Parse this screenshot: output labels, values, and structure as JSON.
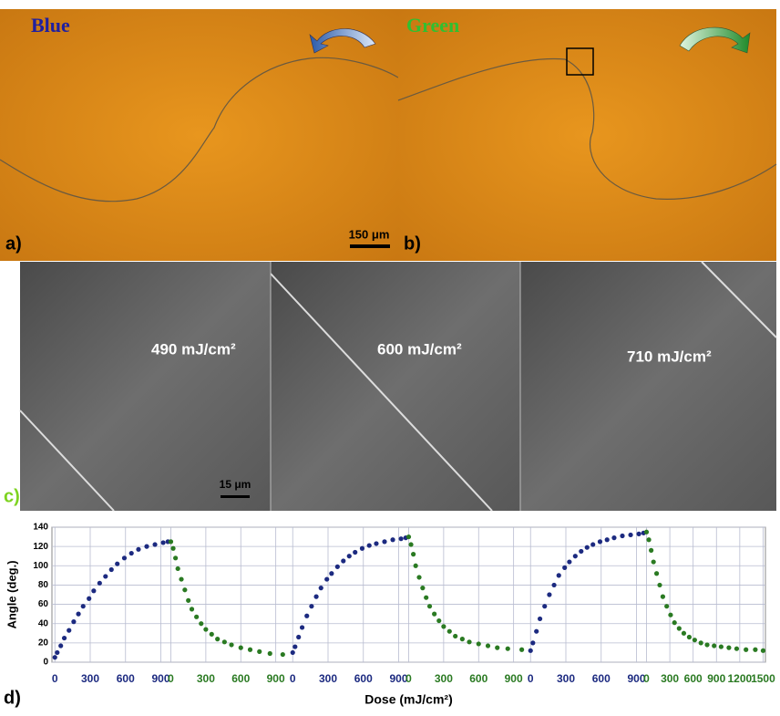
{
  "panels": {
    "a": {
      "label": "a)",
      "caption": "Blue",
      "scale_bar": "150 μm"
    },
    "b": {
      "label": "b)",
      "caption": "Green"
    },
    "c": {
      "label": "c)",
      "doses": [
        "490 mJ/cm²",
        "600 mJ/cm²",
        "710 mJ/cm²"
      ],
      "scale_bar": "15 μm"
    },
    "d": {
      "label": "d)"
    }
  },
  "chart_data": [
    {
      "type": "scatter",
      "ylabel": "Angle (deg.)",
      "xlabel": "Dose (mJ/cm²)",
      "xlim": [
        -25,
        985
      ],
      "xticks": [
        0,
        300,
        600,
        900
      ],
      "ylim": [
        0,
        140
      ],
      "yticks": [
        0,
        20,
        40,
        60,
        80,
        100,
        120,
        140
      ],
      "grid": true,
      "series": [
        {
          "color": "#1c2a80",
          "x": [
            0,
            20,
            50,
            80,
            120,
            160,
            200,
            240,
            290,
            330,
            380,
            430,
            480,
            530,
            590,
            650,
            710,
            780,
            850,
            920,
            960
          ],
          "values": [
            5,
            10,
            17,
            25,
            33,
            42,
            50,
            58,
            66,
            74,
            82,
            89,
            96,
            102,
            108,
            113,
            117,
            120,
            122,
            124,
            125
          ]
        }
      ]
    },
    {
      "type": "scatter",
      "xlim": [
        0,
        1020
      ],
      "xticks": [
        0,
        300,
        600,
        900
      ],
      "ylim": [
        0,
        140
      ],
      "grid": true,
      "series": [
        {
          "color": "#2a7a22",
          "x": [
            0,
            20,
            40,
            60,
            90,
            120,
            150,
            180,
            220,
            260,
            300,
            350,
            400,
            460,
            520,
            600,
            680,
            760,
            850,
            960
          ],
          "values": [
            125,
            118,
            108,
            97,
            86,
            75,
            64,
            55,
            47,
            40,
            34,
            29,
            24,
            21,
            18,
            15,
            13,
            11,
            9,
            8
          ]
        }
      ]
    },
    {
      "type": "scatter",
      "xlim": [
        -25,
        985
      ],
      "xticks": [
        0,
        300,
        600,
        900
      ],
      "ylim": [
        0,
        140
      ],
      "grid": true,
      "series": [
        {
          "color": "#1c2a80",
          "x": [
            0,
            20,
            50,
            80,
            120,
            160,
            200,
            240,
            290,
            330,
            380,
            430,
            480,
            530,
            590,
            650,
            710,
            780,
            850,
            920,
            960
          ],
          "values": [
            10,
            16,
            26,
            36,
            48,
            58,
            68,
            77,
            86,
            92,
            99,
            105,
            110,
            114,
            118,
            121,
            123,
            125,
            127,
            128,
            129
          ]
        }
      ]
    },
    {
      "type": "scatter",
      "xlim": [
        0,
        1020
      ],
      "xticks": [
        0,
        300,
        600,
        900
      ],
      "ylim": [
        0,
        140
      ],
      "grid": true,
      "series": [
        {
          "color": "#2a7a22",
          "x": [
            0,
            20,
            40,
            60,
            90,
            120,
            150,
            180,
            220,
            260,
            300,
            350,
            400,
            460,
            520,
            600,
            680,
            760,
            850,
            970
          ],
          "values": [
            130,
            122,
            112,
            100,
            88,
            77,
            67,
            58,
            50,
            43,
            37,
            32,
            27,
            24,
            21,
            19,
            17,
            15,
            14,
            13
          ]
        }
      ]
    },
    {
      "type": "scatter",
      "xlim": [
        -25,
        985
      ],
      "xticks": [
        0,
        300,
        600,
        900
      ],
      "ylim": [
        0,
        140
      ],
      "grid": true,
      "series": [
        {
          "color": "#1c2a80",
          "x": [
            0,
            20,
            50,
            80,
            120,
            160,
            200,
            240,
            290,
            330,
            380,
            430,
            480,
            530,
            590,
            650,
            710,
            780,
            850,
            920,
            960
          ],
          "values": [
            12,
            20,
            32,
            45,
            58,
            70,
            80,
            90,
            98,
            104,
            110,
            115,
            119,
            122,
            125,
            127,
            129,
            131,
            132,
            133,
            134
          ]
        }
      ]
    },
    {
      "type": "scatter",
      "xlim": [
        0,
        1530
      ],
      "xticks": [
        0,
        300,
        600,
        900,
        1200,
        1500
      ],
      "ylim": [
        0,
        140
      ],
      "grid": true,
      "series": [
        {
          "color": "#2a7a22",
          "x": [
            0,
            30,
            60,
            90,
            130,
            170,
            210,
            260,
            310,
            360,
            420,
            480,
            550,
            620,
            700,
            780,
            870,
            960,
            1060,
            1160,
            1280,
            1400,
            1500
          ],
          "values": [
            135,
            127,
            116,
            104,
            92,
            80,
            68,
            58,
            49,
            41,
            35,
            30,
            26,
            23,
            20,
            18,
            17,
            16,
            15,
            14,
            13,
            13,
            12
          ]
        }
      ]
    }
  ]
}
